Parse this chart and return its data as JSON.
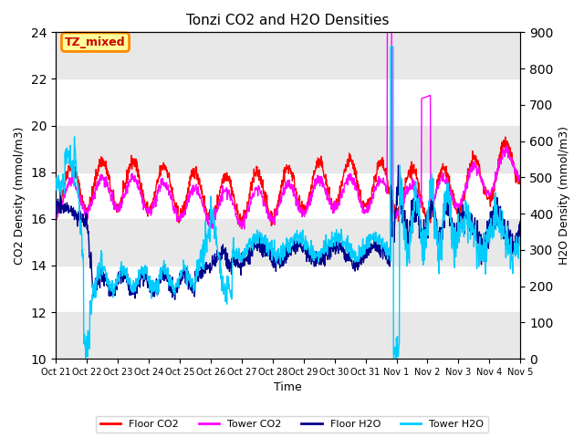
{
  "title": "Tonzi CO2 and H2O Densities",
  "xlabel": "Time",
  "ylabel_left": "CO2 Density (mmol/m3)",
  "ylabel_right": "H2O Density (mmol/m3)",
  "ylim_left": [
    10,
    24
  ],
  "ylim_right": [
    0,
    900
  ],
  "yticks_left": [
    10,
    12,
    14,
    16,
    18,
    20,
    22,
    24
  ],
  "yticks_right": [
    0,
    100,
    200,
    300,
    400,
    500,
    600,
    700,
    800,
    900
  ],
  "xtick_labels": [
    "Oct 21",
    "Oct 22",
    "Oct 23",
    "Oct 24",
    "Oct 25",
    "Oct 26",
    "Oct 27",
    "Oct 28",
    "Oct 29",
    "Oct 30",
    "Oct 31",
    "Nov 1",
    "Nov 2",
    "Nov 3",
    "Nov 4",
    "Nov 5"
  ],
  "colors": {
    "floor_co2": "#FF0000",
    "tower_co2": "#FF00FF",
    "floor_h2o": "#00008B",
    "tower_h2o": "#00CCFF"
  },
  "legend_labels": [
    "Floor CO2",
    "Tower CO2",
    "Floor H2O",
    "Tower H2O"
  ],
  "annotation_text": "TZ_mixed",
  "annotation_bg": "#FFFF99",
  "annotation_edge": "#FF8800",
  "background_stripe_color": "#E8E8E8",
  "grid_band_ranges": [
    [
      10,
      12
    ],
    [
      14,
      16
    ],
    [
      18,
      20
    ],
    [
      22,
      24
    ]
  ],
  "n_days": 15
}
